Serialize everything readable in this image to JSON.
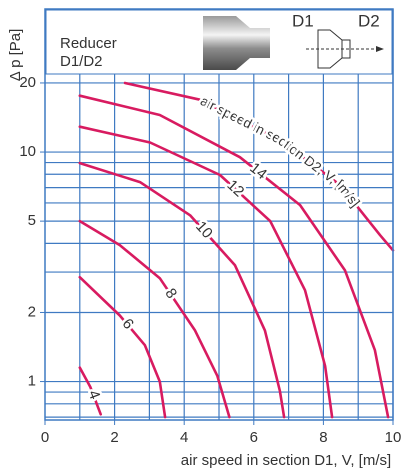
{
  "chart_data": {
    "type": "line",
    "title": "Reducer",
    "subtitle": "D1/D2",
    "diagram_labels": [
      "D1",
      "D2"
    ],
    "curve_annotation": "air speed in section D2, V, [m/s]",
    "x_label": "air speed in section D1, V, [m/s]",
    "y_label": "Δ p [Pa]",
    "xlim": [
      0,
      10
    ],
    "xticks": [
      0,
      2,
      4,
      6,
      8,
      10
    ],
    "xgrid": [
      1,
      2,
      3,
      4,
      5,
      6,
      7,
      8,
      9,
      10
    ],
    "ylim": [
      0.68,
      42
    ],
    "yscale": "log",
    "yticks": [
      1,
      2,
      5,
      10,
      20
    ],
    "ygrid": [
      0.7,
      0.8,
      0.9,
      1,
      2,
      3,
      4,
      5,
      6,
      7,
      8,
      9,
      10,
      20
    ],
    "grid": true,
    "series": [
      {
        "name": "4",
        "color": "#d81b60",
        "x": [
          1,
          1.3,
          1.6
        ],
        "values": [
          1.15,
          0.95,
          0.72
        ]
      },
      {
        "name": "6",
        "color": "#d81b60",
        "x": [
          1,
          2.15,
          2.87,
          3.3,
          3.45
        ],
        "values": [
          2.85,
          1.94,
          1.44,
          1.0,
          0.7
        ]
      },
      {
        "name": "8",
        "color": "#d81b60",
        "x": [
          1,
          2.15,
          3.3,
          4.31,
          4.95,
          5.3
        ],
        "values": [
          5.0,
          3.93,
          2.82,
          1.67,
          1.06,
          0.7
        ]
      },
      {
        "name": "10",
        "color": "#d81b60",
        "x": [
          1,
          2.73,
          4.17,
          5.46,
          6.32,
          6.75,
          6.87
        ],
        "values": [
          8.95,
          7.4,
          5.3,
          3.21,
          1.67,
          0.91,
          0.7
        ]
      },
      {
        "name": "12",
        "color": "#d81b60",
        "x": [
          1,
          3.02,
          5.03,
          6.47,
          7.47,
          8.05,
          8.25
        ],
        "values": [
          12.9,
          11.0,
          7.94,
          5.0,
          2.5,
          1.17,
          0.7
        ]
      },
      {
        "name": "14",
        "color": "#d81b60",
        "x": [
          1,
          3.3,
          5.6,
          7.33,
          8.62,
          9.48,
          9.86
        ],
        "values": [
          17.6,
          14.5,
          9.5,
          5.87,
          3.05,
          1.37,
          0.7
        ]
      },
      {
        "color": "#d81b60",
        "x": [
          2.3,
          4.45,
          6.75,
          8.48,
          9.63,
          10
        ],
        "values": [
          20.0,
          16.9,
          11.3,
          7.18,
          4.34,
          3.73
        ]
      }
    ]
  }
}
